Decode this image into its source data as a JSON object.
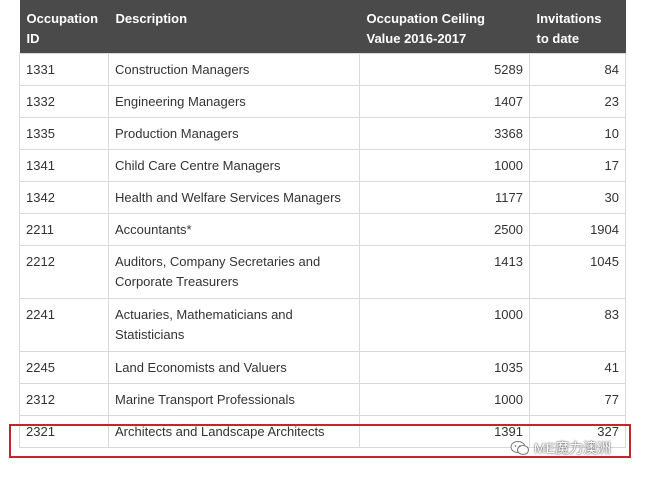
{
  "headers": {
    "id": "Occupation ID",
    "id_line1": "Occupation",
    "id_line2": "ID",
    "desc": "Description",
    "ceiling_line1": "Occupation Ceiling",
    "ceiling_line2": "Value 2016-2017",
    "inv_line1": "Invitations",
    "inv_line2": "to date"
  },
  "rows": [
    {
      "id": "1331",
      "desc": "Construction Managers",
      "ceiling": "5289",
      "invitations": "84"
    },
    {
      "id": "1332",
      "desc": "Engineering Managers",
      "ceiling": "1407",
      "invitations": "23"
    },
    {
      "id": "1335",
      "desc": "Production Managers",
      "ceiling": "3368",
      "invitations": "10"
    },
    {
      "id": "1341",
      "desc": "Child Care Centre Managers",
      "ceiling": "1000",
      "invitations": "17"
    },
    {
      "id": "1342",
      "desc": "Health and Welfare Services Managers",
      "ceiling": "1177",
      "invitations": "30"
    },
    {
      "id": "2211",
      "desc": "Accountants*",
      "ceiling": "2500",
      "invitations": "1904"
    },
    {
      "id": "2212",
      "desc_line1": "Auditors, Company Secretaries and",
      "desc_line2": "Corporate Treasurers",
      "ceiling": "1413",
      "invitations": "1045"
    },
    {
      "id": "2241",
      "desc_line1": "Actuaries, Mathematicians and",
      "desc_line2": "Statisticians",
      "ceiling": "1000",
      "invitations": "83"
    },
    {
      "id": "2245",
      "desc": "Land Economists and Valuers",
      "ceiling": "1035",
      "invitations": "41"
    },
    {
      "id": "2312",
      "desc": "Marine Transport Professionals",
      "ceiling": "1000",
      "invitations": "77"
    },
    {
      "id": "2321",
      "desc": "Architects and Landscape Architects",
      "ceiling": "1391",
      "invitations": "327"
    }
  ],
  "watermark": "ME魔力澳洲",
  "colors": {
    "header_bg": "#4a4a4a",
    "highlight": "#c0272d",
    "border": "#d9d9d9"
  }
}
